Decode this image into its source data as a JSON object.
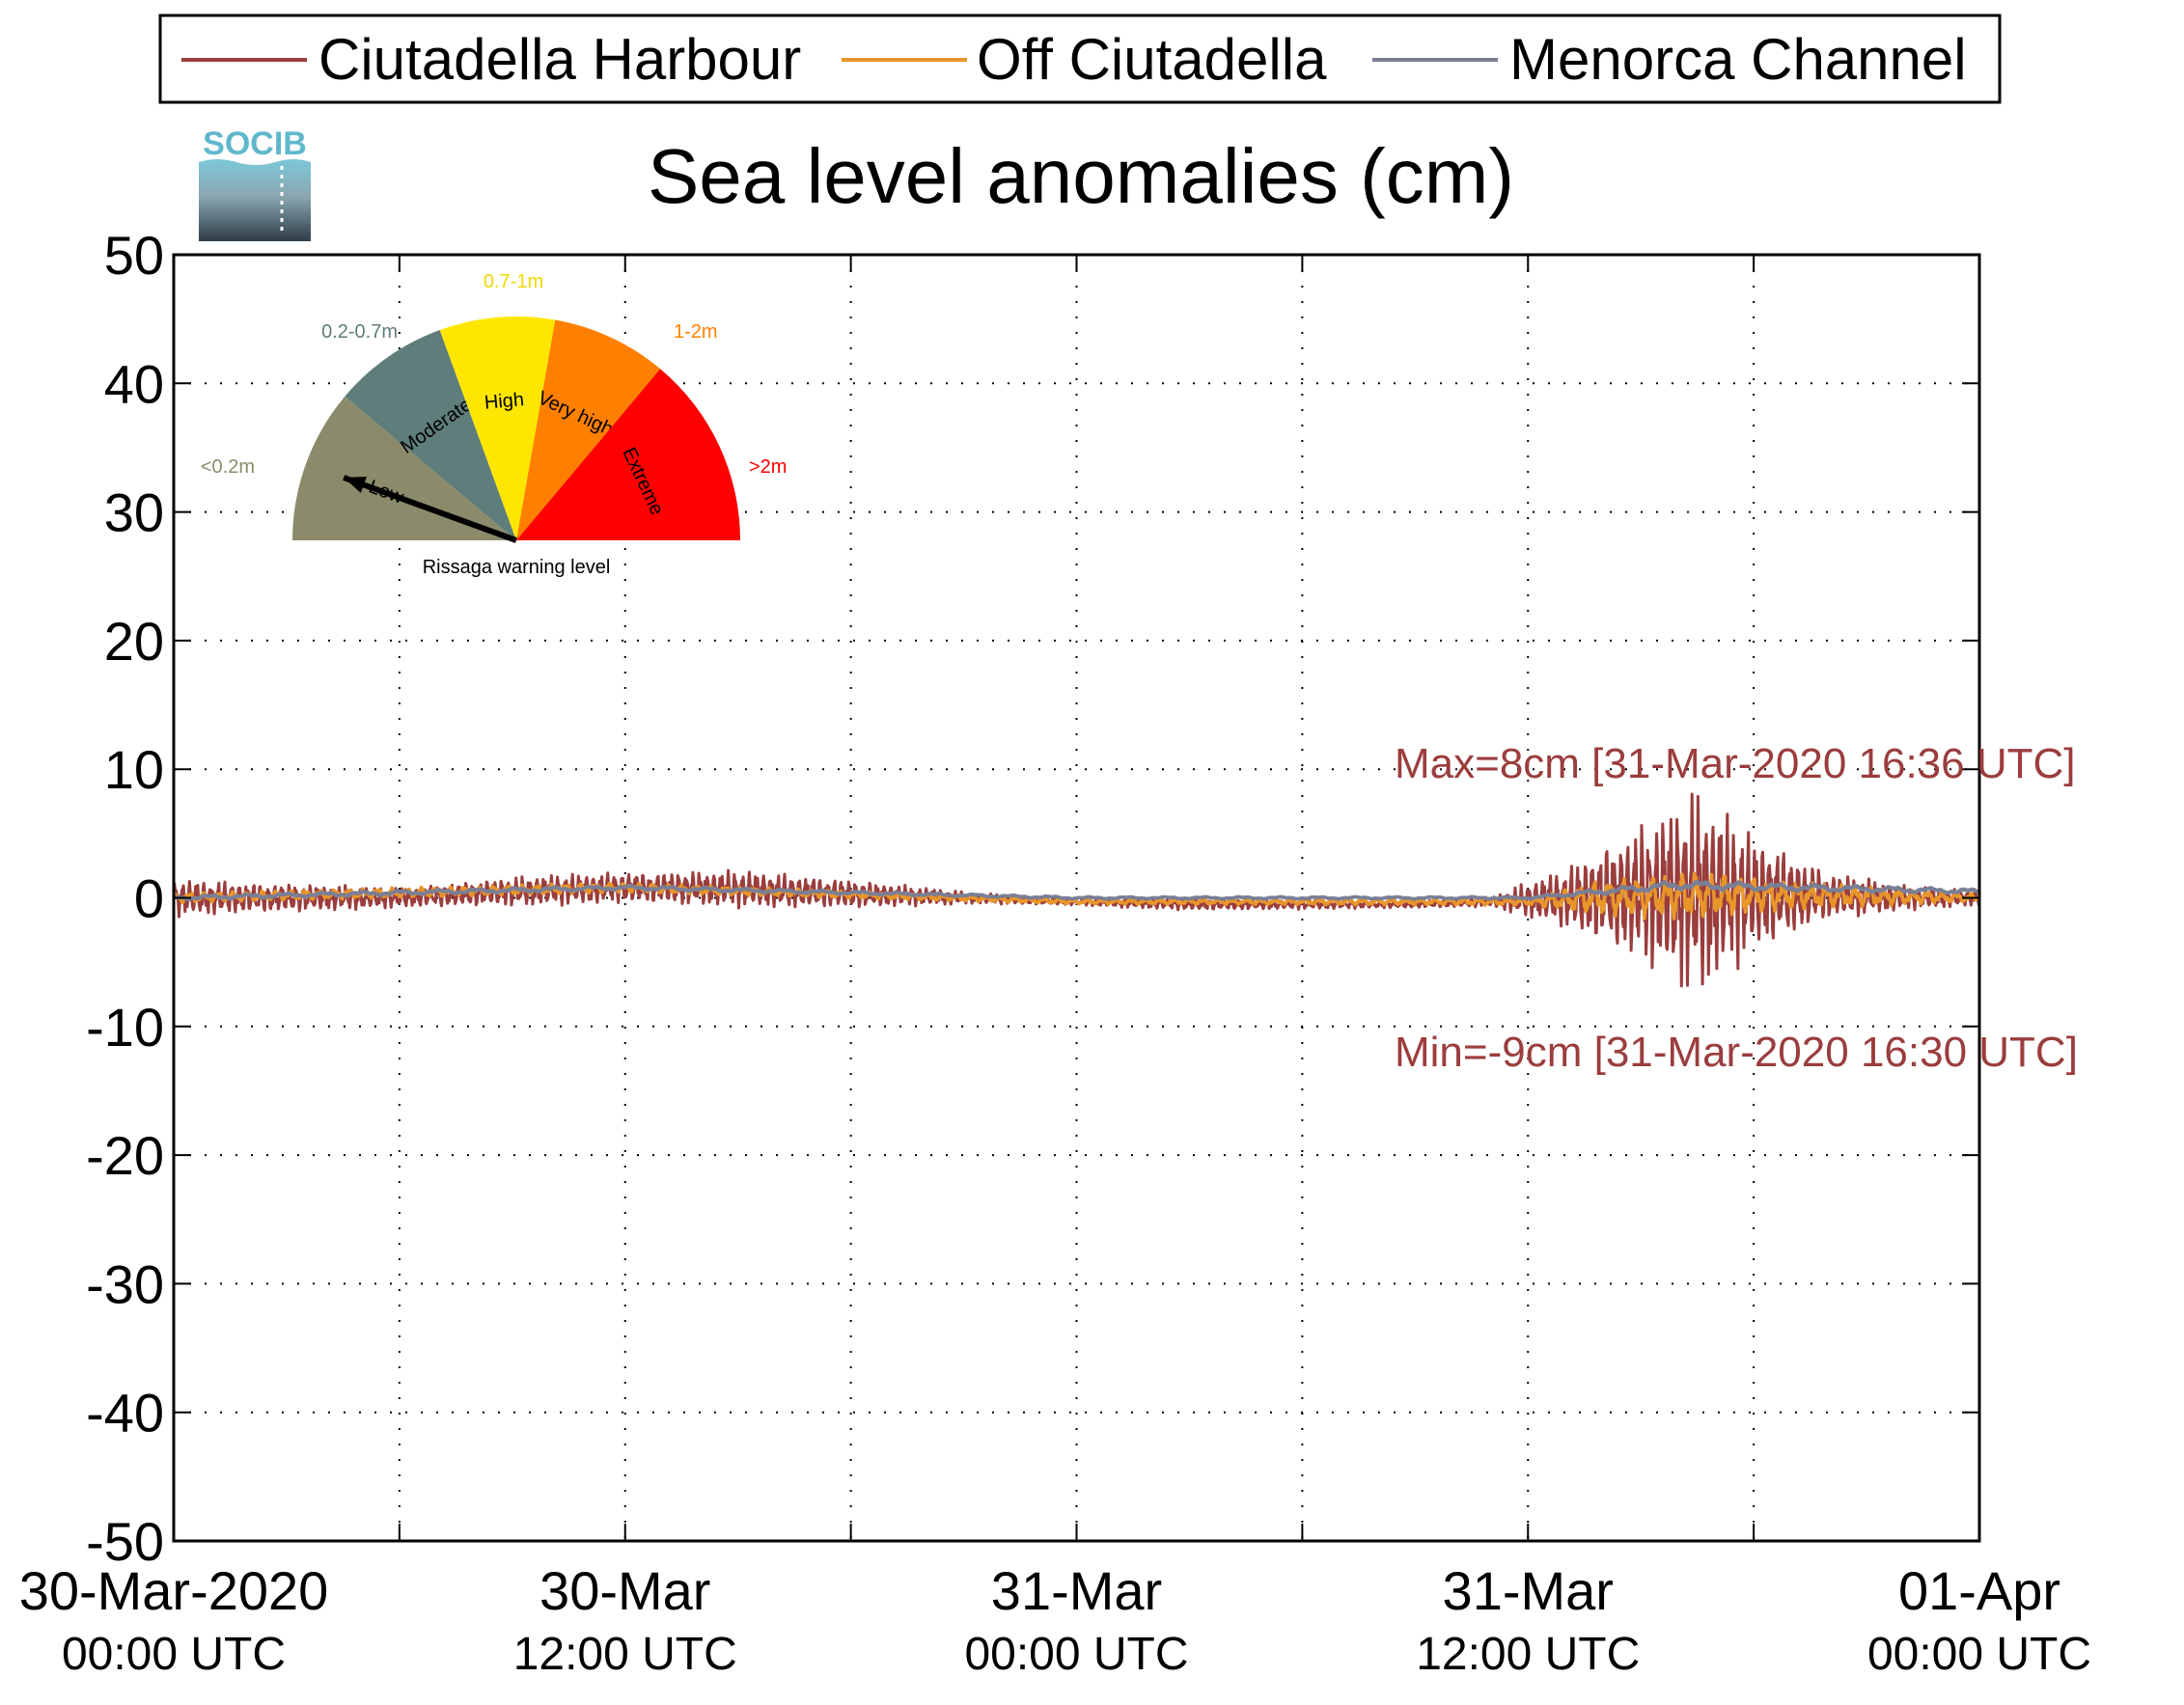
{
  "chart_data": {
    "type": "line",
    "title": "Sea level anomalies (cm)",
    "xlabel": "",
    "ylabel": "",
    "ylim": [
      -50,
      50
    ],
    "xlim": [
      "2020-03-30T00:00Z",
      "2020-04-01T00:00Z"
    ],
    "yticks": [
      50,
      40,
      30,
      20,
      10,
      0,
      -10,
      -20,
      -30,
      -40,
      -50
    ],
    "xticks": [
      {
        "t": "2020-03-30T00:00Z",
        "line1": "30-Mar-2020",
        "line2": "00:00 UTC"
      },
      {
        "t": "2020-03-30T12:00Z",
        "line1": "30-Mar",
        "line2": "12:00 UTC"
      },
      {
        "t": "2020-03-31T00:00Z",
        "line1": "31-Mar",
        "line2": "00:00 UTC"
      },
      {
        "t": "2020-03-31T12:00Z",
        "line1": "31-Mar",
        "line2": "12:00 UTC"
      },
      {
        "t": "2020-04-01T00:00Z",
        "line1": "01-Apr",
        "line2": "00:00 UTC"
      }
    ],
    "grid": true,
    "legend_position": "top",
    "series": [
      {
        "name": "Ciutadella Harbour",
        "color": "#9b3d3d",
        "envelope": {
          "time": [
            "2020-03-30T00:00Z",
            "2020-03-30T03:00Z",
            "2020-03-30T06:00Z",
            "2020-03-30T09:00Z",
            "2020-03-30T12:00Z",
            "2020-03-30T15:00Z",
            "2020-03-30T18:00Z",
            "2020-03-30T21:00Z",
            "2020-03-31T00:00Z",
            "2020-03-31T03:00Z",
            "2020-03-31T06:00Z",
            "2020-03-31T09:00Z",
            "2020-03-31T11:00Z",
            "2020-03-31T13:00Z",
            "2020-03-31T15:00Z",
            "2020-03-31T16:30Z",
            "2020-03-31T18:00Z",
            "2020-03-31T20:00Z",
            "2020-03-31T22:00Z",
            "2020-04-01T00:00Z"
          ],
          "center": [
            0,
            0,
            0,
            0.5,
            0.8,
            0.7,
            0.3,
            0,
            -0.3,
            -0.5,
            -0.5,
            -0.5,
            -0.3,
            0,
            0.3,
            0.3,
            0.3,
            0.2,
            0,
            0
          ],
          "amplitude": [
            1.5,
            1.2,
            0.8,
            1.2,
            1.3,
            1.5,
            1.2,
            0.5,
            0.3,
            0.5,
            0.4,
            0.3,
            0.4,
            2.5,
            6,
            8.5,
            5,
            2,
            1,
            0.7
          ]
        }
      },
      {
        "name": "Off Ciutadella",
        "color": "#e8952a",
        "envelope": {
          "time": [
            "2020-03-30T00:00Z",
            "2020-03-30T12:00Z",
            "2020-03-31T00:00Z",
            "2020-03-31T12:00Z",
            "2020-03-31T14:00Z",
            "2020-03-31T16:30Z",
            "2020-03-31T19:00Z",
            "2020-04-01T00:00Z"
          ],
          "center": [
            0,
            0.8,
            -0.3,
            -0.3,
            0,
            0.2,
            0.2,
            0
          ],
          "amplitude": [
            0.4,
            0.4,
            0.2,
            0.3,
            1.5,
            2,
            1.2,
            0.3
          ]
        }
      },
      {
        "name": "Menorca Channel",
        "color": "#7a7f96",
        "envelope": {
          "time": [
            "2020-03-30T00:00Z",
            "2020-03-30T12:00Z",
            "2020-03-31T00:00Z",
            "2020-03-31T12:00Z",
            "2020-03-31T16:00Z",
            "2020-04-01T00:00Z"
          ],
          "center": [
            0,
            0.8,
            0,
            0,
            1,
            0.5
          ],
          "amplitude": [
            0.2,
            0.2,
            0.1,
            0.1,
            0.4,
            0.2
          ]
        }
      }
    ],
    "annotations": [
      {
        "text": "Max=8cm [31-Mar-2020 16:36 UTC]",
        "color": "#9b3d3d",
        "t": "2020-03-31T16:36Z",
        "value": 8
      },
      {
        "text": "Min=-9cm [31-Mar-2020 16:30 UTC]",
        "color": "#9b3d3d",
        "t": "2020-03-31T16:30Z",
        "value": -9
      }
    ]
  },
  "logo": {
    "text": "SOCIB"
  },
  "gauge": {
    "title": "Rissaga warning level",
    "needle_category": "Low",
    "segments": [
      {
        "name": "Low",
        "range": "<0.2m",
        "color": "#8b8b6b",
        "range_color": "#8b8b6b"
      },
      {
        "name": "Moderate",
        "range": "0.2-0.7m",
        "color": "#5f7d7a",
        "range_color": "#5f7d7a"
      },
      {
        "name": "High",
        "range": "0.7-1m",
        "color": "#ffe600",
        "range_color": "#f0d800"
      },
      {
        "name": "Very high",
        "range": "1-2m",
        "color": "#ff8000",
        "range_color": "#ff8000"
      },
      {
        "name": "Extreme",
        "range": ">2m",
        "color": "#ff0000",
        "range_color": "#ff0000"
      }
    ]
  }
}
